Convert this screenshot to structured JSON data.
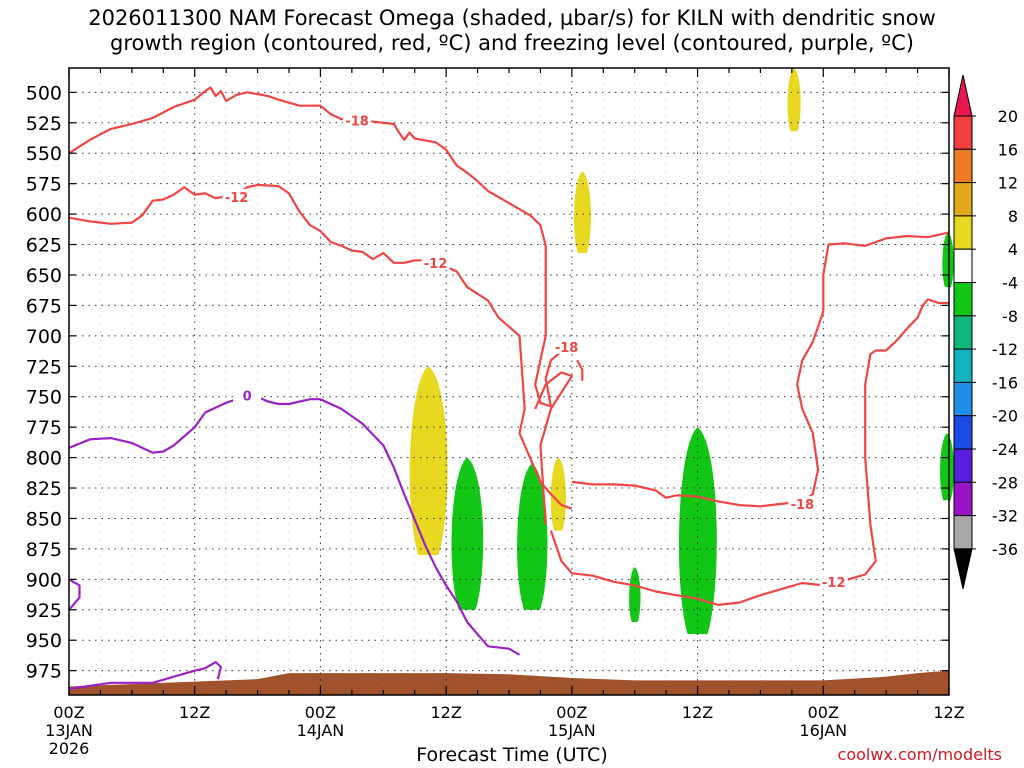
{
  "title": "2026011300 NAM Forecast Omega (shaded, µbar/s) for KILN with dendritic snow growth region (contoured, red, ºC) and freezing level (contoured, purple, ºC)",
  "credit": "coolwx.com/modelts",
  "chart_data": {
    "type": "time-height cross section",
    "xlabel": "Forecast Time (UTC)",
    "x_ticks": [
      {
        "hour": 0,
        "label": "00Z",
        "date": "13JAN",
        "year": "2026"
      },
      {
        "hour": 12,
        "label": "12Z"
      },
      {
        "hour": 24,
        "label": "00Z",
        "date": "14JAN"
      },
      {
        "hour": 36,
        "label": "12Z"
      },
      {
        "hour": 48,
        "label": "00Z",
        "date": "15JAN"
      },
      {
        "hour": 60,
        "label": "12Z"
      },
      {
        "hour": 72,
        "label": "00Z",
        "date": "16JAN"
      },
      {
        "hour": 84,
        "label": "12Z"
      }
    ],
    "xlim_hours": [
      0,
      84
    ],
    "y_unit": "hPa",
    "y_ticks": [
      500,
      525,
      550,
      575,
      600,
      625,
      650,
      675,
      700,
      725,
      750,
      775,
      800,
      825,
      850,
      875,
      900,
      925,
      950,
      975
    ],
    "ylim": [
      480,
      995
    ],
    "grid": true,
    "colorbar": {
      "labels": [
        "20",
        "16",
        "12",
        "8",
        "4",
        "-4",
        "-8",
        "-12",
        "-16",
        "-20",
        "-24",
        "-28",
        "-32",
        "-36"
      ],
      "colors": [
        "#e8174f",
        "#ef3f3f",
        "#ef7a26",
        "#e2a81b",
        "#e8d820",
        "#ffffff",
        "#11c614",
        "#10b77d",
        "#12b3be",
        "#1e8fe6",
        "#1a4de8",
        "#5a1ee0",
        "#9a12c6",
        "#a8a8a8",
        "#000000"
      ]
    },
    "contours": [
      {
        "name": "dendritic snow growth region",
        "color": "#f04545",
        "labels": [
          {
            "text": "-18",
            "hour": 27.5,
            "p": 523
          },
          {
            "text": "-12",
            "hour": 16,
            "p": 586
          },
          {
            "text": "-12",
            "hour": 35,
            "p": 640
          },
          {
            "text": "-18",
            "hour": 47.5,
            "p": 709
          },
          {
            "text": "-18",
            "hour": 70,
            "p": 838
          },
          {
            "text": "-12",
            "hour": 73,
            "p": 902
          }
        ],
        "lines": [
          [
            [
              0,
              550
            ],
            [
              2,
              539
            ],
            [
              4,
              530
            ],
            [
              6,
              526
            ],
            [
              8,
              521
            ],
            [
              10,
              512
            ],
            [
              12,
              506
            ],
            [
              13,
              499
            ],
            [
              13.5,
              496
            ],
            [
              14,
              503
            ],
            [
              14.5,
              499
            ],
            [
              15,
              507
            ],
            [
              16,
              502
            ],
            [
              17,
              500
            ],
            [
              19,
              503
            ],
            [
              20,
              506
            ],
            [
              22,
              511
            ],
            [
              24,
              511
            ],
            [
              25,
              518
            ],
            [
              26,
              522
            ],
            [
              27,
              523
            ],
            [
              29,
              524
            ],
            [
              31,
              526
            ],
            [
              31.5,
              533
            ],
            [
              32,
              539
            ],
            [
              32.5,
              533
            ],
            [
              33,
              538
            ],
            [
              35,
              541
            ],
            [
              36,
              547
            ],
            [
              37,
              560
            ],
            [
              38,
              566
            ],
            [
              39,
              573
            ],
            [
              40,
              581
            ],
            [
              42,
              591
            ],
            [
              44,
              601
            ],
            [
              45,
              609
            ],
            [
              45.5,
              626
            ],
            [
              45.5,
              660
            ],
            [
              45.5,
              700
            ],
            [
              45,
              720
            ],
            [
              44.5,
              740
            ],
            [
              45,
              755
            ],
            [
              46,
              758
            ]
          ],
          [
            [
              0,
              603
            ],
            [
              2,
              606
            ],
            [
              4,
              608
            ],
            [
              6,
              607
            ],
            [
              7,
              601
            ],
            [
              8,
              589
            ],
            [
              9,
              588
            ],
            [
              10,
              584
            ],
            [
              11,
              578
            ],
            [
              12,
              584
            ],
            [
              13,
              583
            ],
            [
              14,
              587
            ],
            [
              14.5,
              586
            ],
            [
              15,
              587
            ],
            [
              16,
              584
            ],
            [
              17,
              578
            ],
            [
              18,
              576
            ],
            [
              20,
              577
            ],
            [
              21,
              583
            ],
            [
              22,
              598
            ],
            [
              23,
              609
            ],
            [
              24,
              614
            ],
            [
              25,
              623
            ],
            [
              26,
              626
            ],
            [
              27,
              630
            ],
            [
              28,
              631
            ],
            [
              29,
              637
            ],
            [
              30,
              632
            ],
            [
              31,
              640
            ],
            [
              32,
              640
            ],
            [
              33,
              638
            ],
            [
              34,
              638
            ],
            [
              35,
              640
            ],
            [
              37,
              647
            ],
            [
              38,
              660
            ],
            [
              40,
              671
            ],
            [
              41,
              685
            ],
            [
              43,
              700
            ],
            [
              43.5,
              760
            ],
            [
              43,
              780
            ],
            [
              44,
              800
            ],
            [
              45,
              820
            ],
            [
              46,
              830
            ],
            [
              47,
              839
            ],
            [
              48,
              842
            ]
          ],
          [
            [
              46,
              758
            ],
            [
              45.5,
              735
            ],
            [
              46,
              720
            ],
            [
              47,
              713
            ],
            [
              48,
              712
            ]
          ],
          [
            [
              44.5,
              760
            ],
            [
              45.5,
              740
            ],
            [
              47,
              730
            ],
            [
              48,
              733
            ],
            [
              46,
              760
            ],
            [
              45,
              790
            ],
            [
              45.5,
              855
            ]
          ],
          [
            [
              48,
              820
            ],
            [
              50,
              822
            ],
            [
              52,
              822
            ],
            [
              54,
              823
            ],
            [
              56,
              827
            ],
            [
              57,
              833
            ],
            [
              58,
              831
            ],
            [
              60,
              832
            ],
            [
              62,
              836
            ],
            [
              64,
              839
            ],
            [
              66,
              840
            ],
            [
              68,
              838
            ],
            [
              70,
              836
            ],
            [
              71,
              830
            ],
            [
              71.5,
              810
            ],
            [
              71,
              780
            ],
            [
              70,
              760
            ],
            [
              69.5,
              740
            ],
            [
              70,
              720
            ],
            [
              71,
              705
            ],
            [
              72,
              680
            ],
            [
              72,
              650
            ],
            [
              72.5,
              625
            ],
            [
              74,
              624
            ],
            [
              76,
              626
            ],
            [
              78,
              620
            ],
            [
              80,
              618
            ],
            [
              82,
              619
            ],
            [
              84,
              615
            ]
          ],
          [
            [
              46,
              860
            ],
            [
              47,
              885
            ],
            [
              48,
              895
            ],
            [
              50,
              897
            ],
            [
              52,
              902
            ],
            [
              54,
              905
            ],
            [
              56,
              910
            ],
            [
              58,
              913
            ],
            [
              60,
              916
            ],
            [
              62,
              921
            ],
            [
              64,
              919
            ],
            [
              66,
              913
            ],
            [
              68,
              908
            ],
            [
              70,
              903
            ],
            [
              72,
              905
            ],
            [
              74,
              901
            ],
            [
              76,
              896
            ],
            [
              77,
              885
            ],
            [
              76.5,
              855
            ],
            [
              76,
              800
            ],
            [
              76,
              740
            ],
            [
              76.5,
              715
            ],
            [
              77,
              712
            ],
            [
              78,
              712
            ],
            [
              79,
              704
            ],
            [
              80,
              694
            ],
            [
              81,
              685
            ],
            [
              81.5,
              675
            ],
            [
              82,
              670
            ],
            [
              83,
              673
            ],
            [
              84,
              673
            ]
          ],
          [
            [
              48.5,
              720
            ],
            [
              49,
              728
            ],
            [
              49,
              737
            ]
          ]
        ]
      },
      {
        "name": "freezing level",
        "color": "#9a22c4",
        "labels": [
          {
            "text": "0",
            "hour": 17,
            "p": 749
          }
        ],
        "lines": [
          [
            [
              0,
              792
            ],
            [
              2,
              785
            ],
            [
              4,
              784
            ],
            [
              6,
              788
            ],
            [
              8,
              796
            ],
            [
              9,
              795
            ],
            [
              10,
              790
            ],
            [
              12,
              775
            ],
            [
              13,
              763
            ],
            [
              15,
              755
            ],
            [
              17,
              749
            ],
            [
              18,
              750
            ],
            [
              19,
              754
            ],
            [
              20,
              756
            ],
            [
              21,
              756
            ],
            [
              23,
              752
            ],
            [
              24,
              752
            ],
            [
              26,
              760
            ],
            [
              28,
              772
            ],
            [
              30,
              790
            ],
            [
              31,
              808
            ],
            [
              32,
              830
            ],
            [
              33,
              851
            ],
            [
              34,
              872
            ],
            [
              35,
              890
            ],
            [
              36,
              905
            ],
            [
              37,
              918
            ],
            [
              38,
              935
            ],
            [
              40,
              955
            ],
            [
              42,
              957
            ],
            [
              43,
              962
            ]
          ],
          [
            [
              0,
              900
            ],
            [
              1,
              905
            ],
            [
              1,
              915
            ],
            [
              0,
              925
            ]
          ],
          [
            [
              0,
              990
            ],
            [
              4,
              985
            ],
            [
              8,
              985
            ],
            [
              10,
              980
            ],
            [
              12,
              975
            ],
            [
              13,
              973
            ],
            [
              14,
              968
            ],
            [
              14.5,
              972
            ],
            [
              14.2,
              982
            ]
          ]
        ]
      }
    ],
    "shaded_regions": [
      {
        "color": "#e8d820",
        "category": "4 to 8",
        "hour": 34.3,
        "p_top": 725,
        "p_bottom": 880
      },
      {
        "color": "#e8d820",
        "category": "4 to 8",
        "hour": 46.7,
        "p_top": 800,
        "p_bottom": 860
      },
      {
        "color": "#e8d820",
        "category": "4 to 8",
        "hour": 49,
        "p_top": 565,
        "p_bottom": 632
      },
      {
        "color": "#e8d820",
        "category": "4 to 8",
        "hour": 69.2,
        "p_top": 480,
        "p_bottom": 532
      },
      {
        "color": "#11c614",
        "category": "-8 to -4",
        "hour": 38,
        "p_top": 800,
        "p_bottom": 925
      },
      {
        "color": "#11c614",
        "category": "-8 to -4",
        "hour": 44.2,
        "p_top": 805,
        "p_bottom": 925
      },
      {
        "color": "#11c614",
        "category": "-8 to -4",
        "hour": 54,
        "p_top": 890,
        "p_bottom": 935
      },
      {
        "color": "#11c614",
        "category": "-8 to -4",
        "hour": 60,
        "p_top": 775,
        "p_bottom": 945
      },
      {
        "color": "#11c614",
        "category": "-8 to -4",
        "hour": 83.8,
        "p_top": 780,
        "p_bottom": 835
      },
      {
        "color": "#11c614",
        "category": "-8 to -4",
        "hour": 83.9,
        "p_top": 615,
        "p_bottom": 660
      }
    ],
    "terrain": {
      "color": "#a0522d"
    }
  }
}
